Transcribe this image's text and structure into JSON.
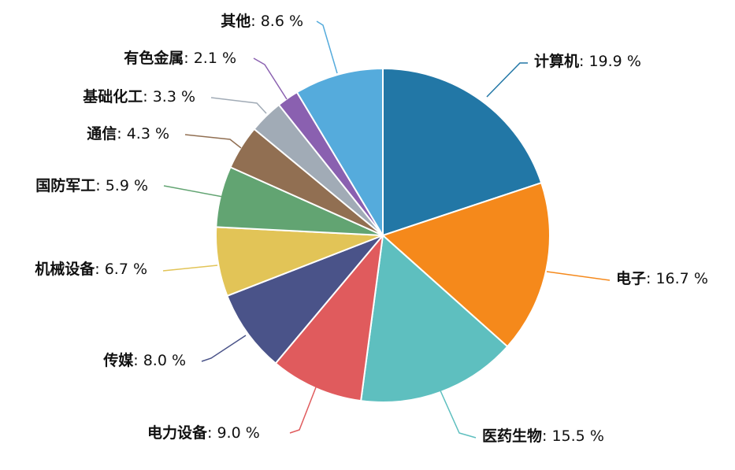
{
  "chart_data": {
    "type": "pie",
    "title": "",
    "slices": [
      {
        "name": "计算机",
        "value": 19.9,
        "label": "19.9 %",
        "color": "#2277a6"
      },
      {
        "name": "电子",
        "value": 16.7,
        "label": "16.7 %",
        "color": "#f5891b"
      },
      {
        "name": "医药生物",
        "value": 15.5,
        "label": "15.5 %",
        "color": "#5ebfbf"
      },
      {
        "name": "电力设备",
        "value": 9.0,
        "label": "9.0 %",
        "color": "#e05b5d"
      },
      {
        "name": "传媒",
        "value": 8.0,
        "label": "8.0 %",
        "color": "#4a5389"
      },
      {
        "name": "机械设备",
        "value": 6.7,
        "label": "6.7 %",
        "color": "#e2c457"
      },
      {
        "name": "国防军工",
        "value": 5.9,
        "label": "5.9 %",
        "color": "#62a472"
      },
      {
        "name": "通信",
        "value": 4.3,
        "label": "4.3 %",
        "color": "#916f52"
      },
      {
        "name": "基础化工",
        "value": 3.3,
        "label": "3.3 %",
        "color": "#a1abb6"
      },
      {
        "name": "有色金属",
        "value": 2.1,
        "label": "2.1 %",
        "color": "#8a60b0"
      },
      {
        "name": "其他",
        "value": 8.6,
        "label": "8.6 %",
        "color": "#55abdc"
      }
    ],
    "separator": ": ",
    "start_angle": "12 o'clock",
    "direction": "clockwise"
  }
}
